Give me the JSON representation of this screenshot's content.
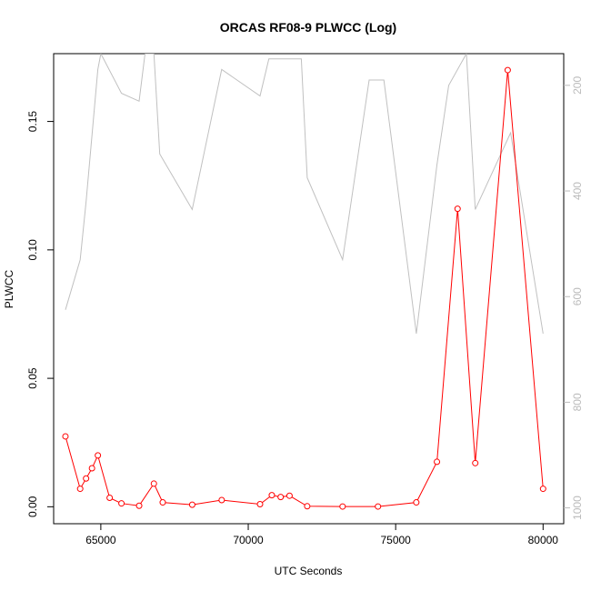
{
  "chart_data": {
    "type": "line",
    "title": "ORCAS RF08-9 PLWCC (Log)",
    "xlabel": "UTC Seconds",
    "ylabel": "PLWCC",
    "xlim": [
      63400,
      80700
    ],
    "ylim": [
      -0.0066,
      0.1764
    ],
    "x_ticks": [
      65000,
      70000,
      75000,
      80000
    ],
    "y_ticks": [
      0.0,
      0.05,
      0.1,
      0.15
    ],
    "y_tick_labels": [
      "0.00",
      "0.05",
      "0.10",
      "0.15"
    ],
    "y2_ticks": [
      200,
      400,
      600,
      800,
      1000
    ],
    "y2_lim": [
      1030,
      140
    ],
    "grid": false,
    "series": [
      {
        "role": "primary",
        "color": "#ff0000",
        "markers": "open-circle",
        "x": [
          63800,
          64300,
          64500,
          64700,
          64900,
          65300,
          65700,
          66300,
          66800,
          67100,
          68100,
          69100,
          70400,
          70800,
          71100,
          71400,
          72000,
          73200,
          74400,
          75700,
          76400,
          77100,
          77700,
          78800,
          80000
        ],
        "values": [
          0.0274,
          0.007,
          0.011,
          0.015,
          0.02,
          0.0035,
          0.0013,
          0.0004,
          0.009,
          0.0017,
          0.0008,
          0.0026,
          0.001,
          0.0045,
          0.0038,
          0.0043,
          0.0002,
          0.0001,
          0.0001,
          0.0017,
          0.0175,
          0.116,
          0.017,
          0.17,
          0.007
        ]
      },
      {
        "role": "secondary",
        "axis": "right",
        "color": "#c0c0c0",
        "markers": "none",
        "x": [
          63800,
          64300,
          64500,
          64900,
          65000,
          65700,
          66300,
          66500,
          66800,
          67000,
          68100,
          69100,
          70400,
          70700,
          71800,
          72000,
          73200,
          74100,
          74600,
          75700,
          76400,
          76800,
          77400,
          77700,
          78900,
          80000
        ],
        "values": [
          625,
          530,
          420,
          170,
          140,
          215,
          230,
          140,
          140,
          330,
          435,
          170,
          220,
          150,
          150,
          375,
          530,
          190,
          190,
          670,
          350,
          200,
          140,
          435,
          290,
          670
        ]
      }
    ]
  }
}
